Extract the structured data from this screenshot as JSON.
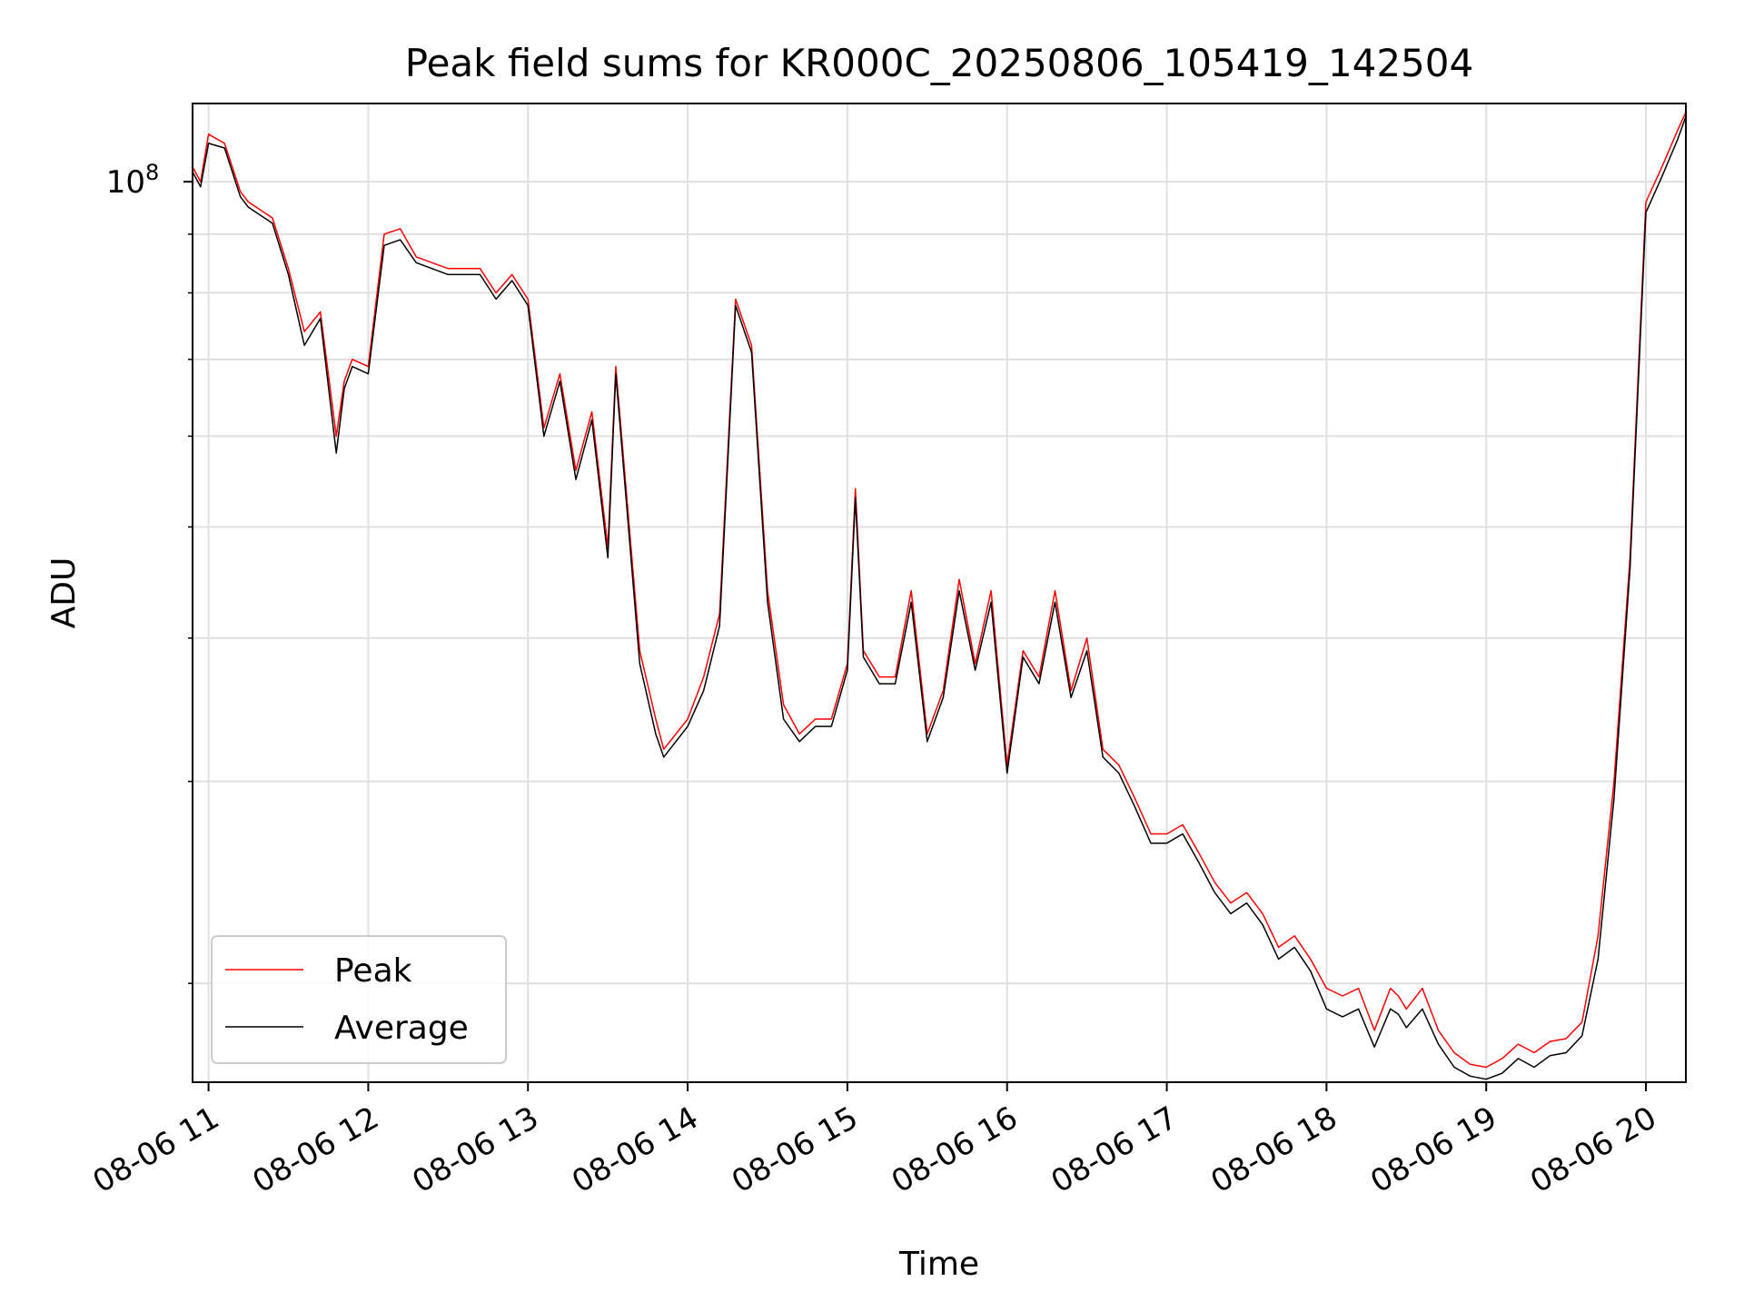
{
  "chart_data": {
    "type": "line",
    "title": "Peak field sums for KR000C_20250806_105419_142504",
    "xlabel": "Time",
    "ylabel": "ADU",
    "yscale": "log",
    "ylim": [
      16400000,
      117000000
    ],
    "xlim": [
      "2025-08-06 10:54",
      "2025-08-06 20:15"
    ],
    "xtick_labels": [
      "08-06 11",
      "08-06 12",
      "08-06 13",
      "08-06 14",
      "08-06 15",
      "08-06 16",
      "08-06 17",
      "08-06 18",
      "08-06 19",
      "08-06 20"
    ],
    "xtick_times": [
      "2025-08-06 11:00",
      "2025-08-06 12:00",
      "2025-08-06 13:00",
      "2025-08-06 14:00",
      "2025-08-06 15:00",
      "2025-08-06 16:00",
      "2025-08-06 17:00",
      "2025-08-06 18:00",
      "2025-08-06 19:00",
      "2025-08-06 20:00"
    ],
    "ytick_major_label": {
      "base": "10",
      "exponent": "8"
    },
    "ytick_major_value": 100000000,
    "ytick_minor_values": [
      20000000,
      30000000,
      40000000,
      50000000,
      60000000,
      70000000,
      80000000,
      90000000
    ],
    "grid": true,
    "legend_position": "lower-left",
    "series": [
      {
        "name": "Peak",
        "color": "#ff0000",
        "x": [
          "2025-08-06 10:54",
          "2025-08-06 10:57",
          "2025-08-06 11:00",
          "2025-08-06 11:06",
          "2025-08-06 11:12",
          "2025-08-06 11:15",
          "2025-08-06 11:24",
          "2025-08-06 11:30",
          "2025-08-06 11:36",
          "2025-08-06 11:42",
          "2025-08-06 11:48",
          "2025-08-06 11:51",
          "2025-08-06 11:54",
          "2025-08-06 12:00",
          "2025-08-06 12:06",
          "2025-08-06 12:12",
          "2025-08-06 12:18",
          "2025-08-06 12:30",
          "2025-08-06 12:42",
          "2025-08-06 12:48",
          "2025-08-06 12:54",
          "2025-08-06 13:00",
          "2025-08-06 13:06",
          "2025-08-06 13:12",
          "2025-08-06 13:18",
          "2025-08-06 13:24",
          "2025-08-06 13:30",
          "2025-08-06 13:33",
          "2025-08-06 13:42",
          "2025-08-06 13:48",
          "2025-08-06 13:51",
          "2025-08-06 14:00",
          "2025-08-06 14:06",
          "2025-08-06 14:12",
          "2025-08-06 14:18",
          "2025-08-06 14:24",
          "2025-08-06 14:30",
          "2025-08-06 14:36",
          "2025-08-06 14:42",
          "2025-08-06 14:48",
          "2025-08-06 14:54",
          "2025-08-06 15:00",
          "2025-08-06 15:03",
          "2025-08-06 15:06",
          "2025-08-06 15:12",
          "2025-08-06 15:18",
          "2025-08-06 15:24",
          "2025-08-06 15:30",
          "2025-08-06 15:36",
          "2025-08-06 15:42",
          "2025-08-06 15:48",
          "2025-08-06 15:54",
          "2025-08-06 16:00",
          "2025-08-06 16:06",
          "2025-08-06 16:12",
          "2025-08-06 16:18",
          "2025-08-06 16:24",
          "2025-08-06 16:30",
          "2025-08-06 16:36",
          "2025-08-06 16:42",
          "2025-08-06 16:48",
          "2025-08-06 16:54",
          "2025-08-06 17:00",
          "2025-08-06 17:06",
          "2025-08-06 17:12",
          "2025-08-06 17:18",
          "2025-08-06 17:24",
          "2025-08-06 17:30",
          "2025-08-06 17:36",
          "2025-08-06 17:42",
          "2025-08-06 17:48",
          "2025-08-06 17:54",
          "2025-08-06 18:00",
          "2025-08-06 18:06",
          "2025-08-06 18:12",
          "2025-08-06 18:18",
          "2025-08-06 18:24",
          "2025-08-06 18:27",
          "2025-08-06 18:30",
          "2025-08-06 18:36",
          "2025-08-06 18:42",
          "2025-08-06 18:48",
          "2025-08-06 18:54",
          "2025-08-06 19:00",
          "2025-08-06 19:06",
          "2025-08-06 19:12",
          "2025-08-06 19:18",
          "2025-08-06 19:24",
          "2025-08-06 19:30",
          "2025-08-06 19:36",
          "2025-08-06 19:42",
          "2025-08-06 19:48",
          "2025-08-06 19:54",
          "2025-08-06 20:00",
          "2025-08-06 20:06",
          "2025-08-06 20:12",
          "2025-08-06 20:15"
        ],
        "y": [
          103000000,
          100000000,
          110000000,
          108000000,
          98000000,
          96000000,
          93000000,
          84000000,
          74000000,
          77000000,
          60000000,
          67000000,
          70000000,
          69000000,
          90000000,
          91000000,
          86000000,
          84000000,
          84000000,
          80000000,
          83000000,
          79000000,
          61000000,
          68000000,
          56000000,
          63000000,
          48000000,
          69000000,
          39000000,
          34000000,
          32000000,
          34000000,
          37000000,
          42000000,
          79000000,
          72000000,
          44000000,
          35000000,
          33000000,
          34000000,
          34000000,
          38000000,
          54000000,
          39000000,
          37000000,
          37000000,
          44000000,
          33000000,
          36000000,
          45000000,
          38000000,
          44000000,
          31000000,
          39000000,
          37000000,
          44000000,
          36000000,
          40000000,
          32000000,
          31000000,
          29000000,
          27000000,
          27000000,
          27500000,
          26000000,
          24500000,
          23500000,
          24000000,
          23000000,
          21500000,
          22000000,
          21000000,
          19800000,
          19500000,
          19800000,
          18200000,
          19800000,
          19500000,
          19000000,
          19800000,
          18200000,
          17400000,
          17000000,
          16900000,
          17200000,
          17700000,
          17400000,
          17800000,
          17900000,
          18500000,
          22000000,
          30000000,
          47000000,
          96000000,
          103000000,
          111000000,
          115000000
        ]
      },
      {
        "name": "Average",
        "color": "#000000",
        "x": [
          "2025-08-06 10:54",
          "2025-08-06 10:57",
          "2025-08-06 11:00",
          "2025-08-06 11:06",
          "2025-08-06 11:12",
          "2025-08-06 11:15",
          "2025-08-06 11:24",
          "2025-08-06 11:30",
          "2025-08-06 11:36",
          "2025-08-06 11:42",
          "2025-08-06 11:48",
          "2025-08-06 11:51",
          "2025-08-06 11:54",
          "2025-08-06 12:00",
          "2025-08-06 12:06",
          "2025-08-06 12:12",
          "2025-08-06 12:18",
          "2025-08-06 12:30",
          "2025-08-06 12:42",
          "2025-08-06 12:48",
          "2025-08-06 12:54",
          "2025-08-06 13:00",
          "2025-08-06 13:06",
          "2025-08-06 13:12",
          "2025-08-06 13:18",
          "2025-08-06 13:24",
          "2025-08-06 13:30",
          "2025-08-06 13:33",
          "2025-08-06 13:42",
          "2025-08-06 13:48",
          "2025-08-06 13:51",
          "2025-08-06 14:00",
          "2025-08-06 14:06",
          "2025-08-06 14:12",
          "2025-08-06 14:18",
          "2025-08-06 14:24",
          "2025-08-06 14:30",
          "2025-08-06 14:36",
          "2025-08-06 14:42",
          "2025-08-06 14:48",
          "2025-08-06 14:54",
          "2025-08-06 15:00",
          "2025-08-06 15:03",
          "2025-08-06 15:06",
          "2025-08-06 15:12",
          "2025-08-06 15:18",
          "2025-08-06 15:24",
          "2025-08-06 15:30",
          "2025-08-06 15:36",
          "2025-08-06 15:42",
          "2025-08-06 15:48",
          "2025-08-06 15:54",
          "2025-08-06 16:00",
          "2025-08-06 16:06",
          "2025-08-06 16:12",
          "2025-08-06 16:18",
          "2025-08-06 16:24",
          "2025-08-06 16:30",
          "2025-08-06 16:36",
          "2025-08-06 16:42",
          "2025-08-06 16:48",
          "2025-08-06 16:54",
          "2025-08-06 17:00",
          "2025-08-06 17:06",
          "2025-08-06 17:12",
          "2025-08-06 17:18",
          "2025-08-06 17:24",
          "2025-08-06 17:30",
          "2025-08-06 17:36",
          "2025-08-06 17:42",
          "2025-08-06 17:48",
          "2025-08-06 17:54",
          "2025-08-06 18:00",
          "2025-08-06 18:06",
          "2025-08-06 18:12",
          "2025-08-06 18:18",
          "2025-08-06 18:24",
          "2025-08-06 18:27",
          "2025-08-06 18:30",
          "2025-08-06 18:36",
          "2025-08-06 18:42",
          "2025-08-06 18:48",
          "2025-08-06 18:54",
          "2025-08-06 19:00",
          "2025-08-06 19:06",
          "2025-08-06 19:12",
          "2025-08-06 19:18",
          "2025-08-06 19:24",
          "2025-08-06 19:30",
          "2025-08-06 19:36",
          "2025-08-06 19:42",
          "2025-08-06 19:48",
          "2025-08-06 19:54",
          "2025-08-06 20:00",
          "2025-08-06 20:06",
          "2025-08-06 20:12",
          "2025-08-06 20:15"
        ],
        "y": [
          102000000,
          99000000,
          108000000,
          107000000,
          97000000,
          95000000,
          92000000,
          83000000,
          72000000,
          76000000,
          58000000,
          66000000,
          69000000,
          68000000,
          88000000,
          89000000,
          85000000,
          83000000,
          83000000,
          79000000,
          82000000,
          78000000,
          60000000,
          67000000,
          55000000,
          62000000,
          47000000,
          68000000,
          38000000,
          33000000,
          31500000,
          33500000,
          36000000,
          41000000,
          78000000,
          71000000,
          43000000,
          34000000,
          32500000,
          33500000,
          33500000,
          37500000,
          53000000,
          38500000,
          36500000,
          36500000,
          43000000,
          32500000,
          35500000,
          44000000,
          37500000,
          43000000,
          30500000,
          38500000,
          36500000,
          43000000,
          35500000,
          39000000,
          31500000,
          30500000,
          28500000,
          26500000,
          26500000,
          27000000,
          25500000,
          24000000,
          23000000,
          23500000,
          22500000,
          21000000,
          21500000,
          20500000,
          19000000,
          18700000,
          19000000,
          17600000,
          19000000,
          18800000,
          18300000,
          19000000,
          17700000,
          16900000,
          16600000,
          16500000,
          16700000,
          17200000,
          16900000,
          17300000,
          17400000,
          18000000,
          21000000,
          29000000,
          46000000,
          94000000,
          101000000,
          109000000,
          114000000
        ]
      }
    ]
  }
}
